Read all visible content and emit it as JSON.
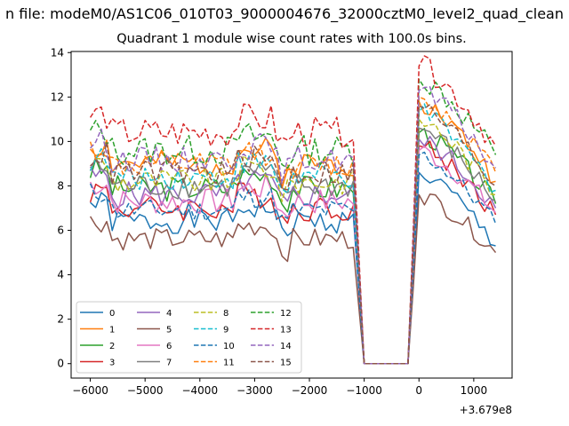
{
  "figure": {
    "suptitle": "n file: modeM0/AS1C06_010T03_9000004676_32000cztM0_level2_quad_clean",
    "offset_label": "+3.679e8"
  },
  "chart_data": {
    "type": "line",
    "title": "Quadrant 1 module wise count rates with 100.0s bins.",
    "xlabel": "",
    "ylabel": "",
    "xlim": [
      -6350,
      1700
    ],
    "ylim": [
      -0.65,
      14.05
    ],
    "x_ticks": [
      -6000,
      -5000,
      -4000,
      -3000,
      -2000,
      -1000,
      0,
      1000
    ],
    "x_tick_labels": [
      "−6000",
      "−5000",
      "−4000",
      "−3000",
      "−2000",
      "−1000",
      "0",
      "1000"
    ],
    "y_ticks": [
      0,
      2,
      4,
      6,
      8,
      10,
      12,
      14
    ],
    "y_tick_labels": [
      "0",
      "2",
      "4",
      "6",
      "8",
      "10",
      "12",
      "14"
    ],
    "grid": false,
    "legend_position": "lower-left",
    "x_offset": 367900000,
    "bins": {
      "pre_start": -6000,
      "pre_end": -1200,
      "gap_start": -1000,
      "gap_end": -200,
      "post_start": -100,
      "post_end": 1400,
      "step": 100
    },
    "series": [
      {
        "name": "0",
        "color": "#1f77b4",
        "dash": "solid",
        "pre_base": 6.4,
        "pre_noise": 0.55,
        "peak": 8.6,
        "post_end": 5.3
      },
      {
        "name": "1",
        "color": "#ff7f0e",
        "dash": "solid",
        "pre_base": 9.0,
        "pre_noise": 0.6,
        "peak": 11.8,
        "post_end": 8.2
      },
      {
        "name": "2",
        "color": "#2ca02c",
        "dash": "solid",
        "pre_base": 7.9,
        "pre_noise": 0.6,
        "peak": 10.4,
        "post_end": 7.2
      },
      {
        "name": "3",
        "color": "#d62728",
        "dash": "solid",
        "pre_base": 7.0,
        "pre_noise": 0.6,
        "peak": 9.8,
        "post_end": 6.7
      },
      {
        "name": "4",
        "color": "#9467bd",
        "dash": "solid",
        "pre_base": 7.6,
        "pre_noise": 0.6,
        "peak": 10.1,
        "post_end": 7.0
      },
      {
        "name": "5",
        "color": "#8c564b",
        "dash": "solid",
        "pre_base": 5.6,
        "pre_noise": 0.5,
        "peak": 7.6,
        "post_end": 5.0
      },
      {
        "name": "6",
        "color": "#e377c2",
        "dash": "solid",
        "pre_base": 7.3,
        "pre_noise": 0.6,
        "peak": 9.6,
        "post_end": 6.8
      },
      {
        "name": "7",
        "color": "#7f7f7f",
        "dash": "solid",
        "pre_base": 8.0,
        "pre_noise": 0.6,
        "peak": 10.6,
        "post_end": 7.3
      },
      {
        "name": "8",
        "color": "#bcbd22",
        "dash": "dashed",
        "pre_base": 8.2,
        "pre_noise": 0.6,
        "peak": 11.0,
        "post_end": 7.6
      },
      {
        "name": "9",
        "color": "#17becf",
        "dash": "dashed",
        "pre_base": 8.4,
        "pre_noise": 0.6,
        "peak": 11.3,
        "post_end": 7.8
      },
      {
        "name": "10",
        "color": "#1f77b4",
        "dash": "dashed",
        "pre_base": 6.9,
        "pre_noise": 0.5,
        "peak": 9.4,
        "post_end": 6.3
      },
      {
        "name": "11",
        "color": "#ff7f0e",
        "dash": "dashed",
        "pre_base": 8.9,
        "pre_noise": 0.6,
        "peak": 12.0,
        "post_end": 8.6
      },
      {
        "name": "12",
        "color": "#2ca02c",
        "dash": "dashed",
        "pre_base": 9.6,
        "pre_noise": 0.7,
        "peak": 12.8,
        "post_end": 9.4
      },
      {
        "name": "13",
        "color": "#d62728",
        "dash": "dashed",
        "pre_base": 10.4,
        "pre_noise": 0.7,
        "peak": 13.4,
        "post_end": 9.8
      },
      {
        "name": "14",
        "color": "#9467bd",
        "dash": "dashed",
        "pre_base": 9.2,
        "pre_noise": 0.6,
        "peak": 12.3,
        "post_end": 8.8
      },
      {
        "name": "15",
        "color": "#8c564b",
        "dash": "dashed",
        "pre_base": 8.6,
        "pre_noise": 0.6,
        "peak": 11.6,
        "post_end": 8.0
      }
    ]
  }
}
